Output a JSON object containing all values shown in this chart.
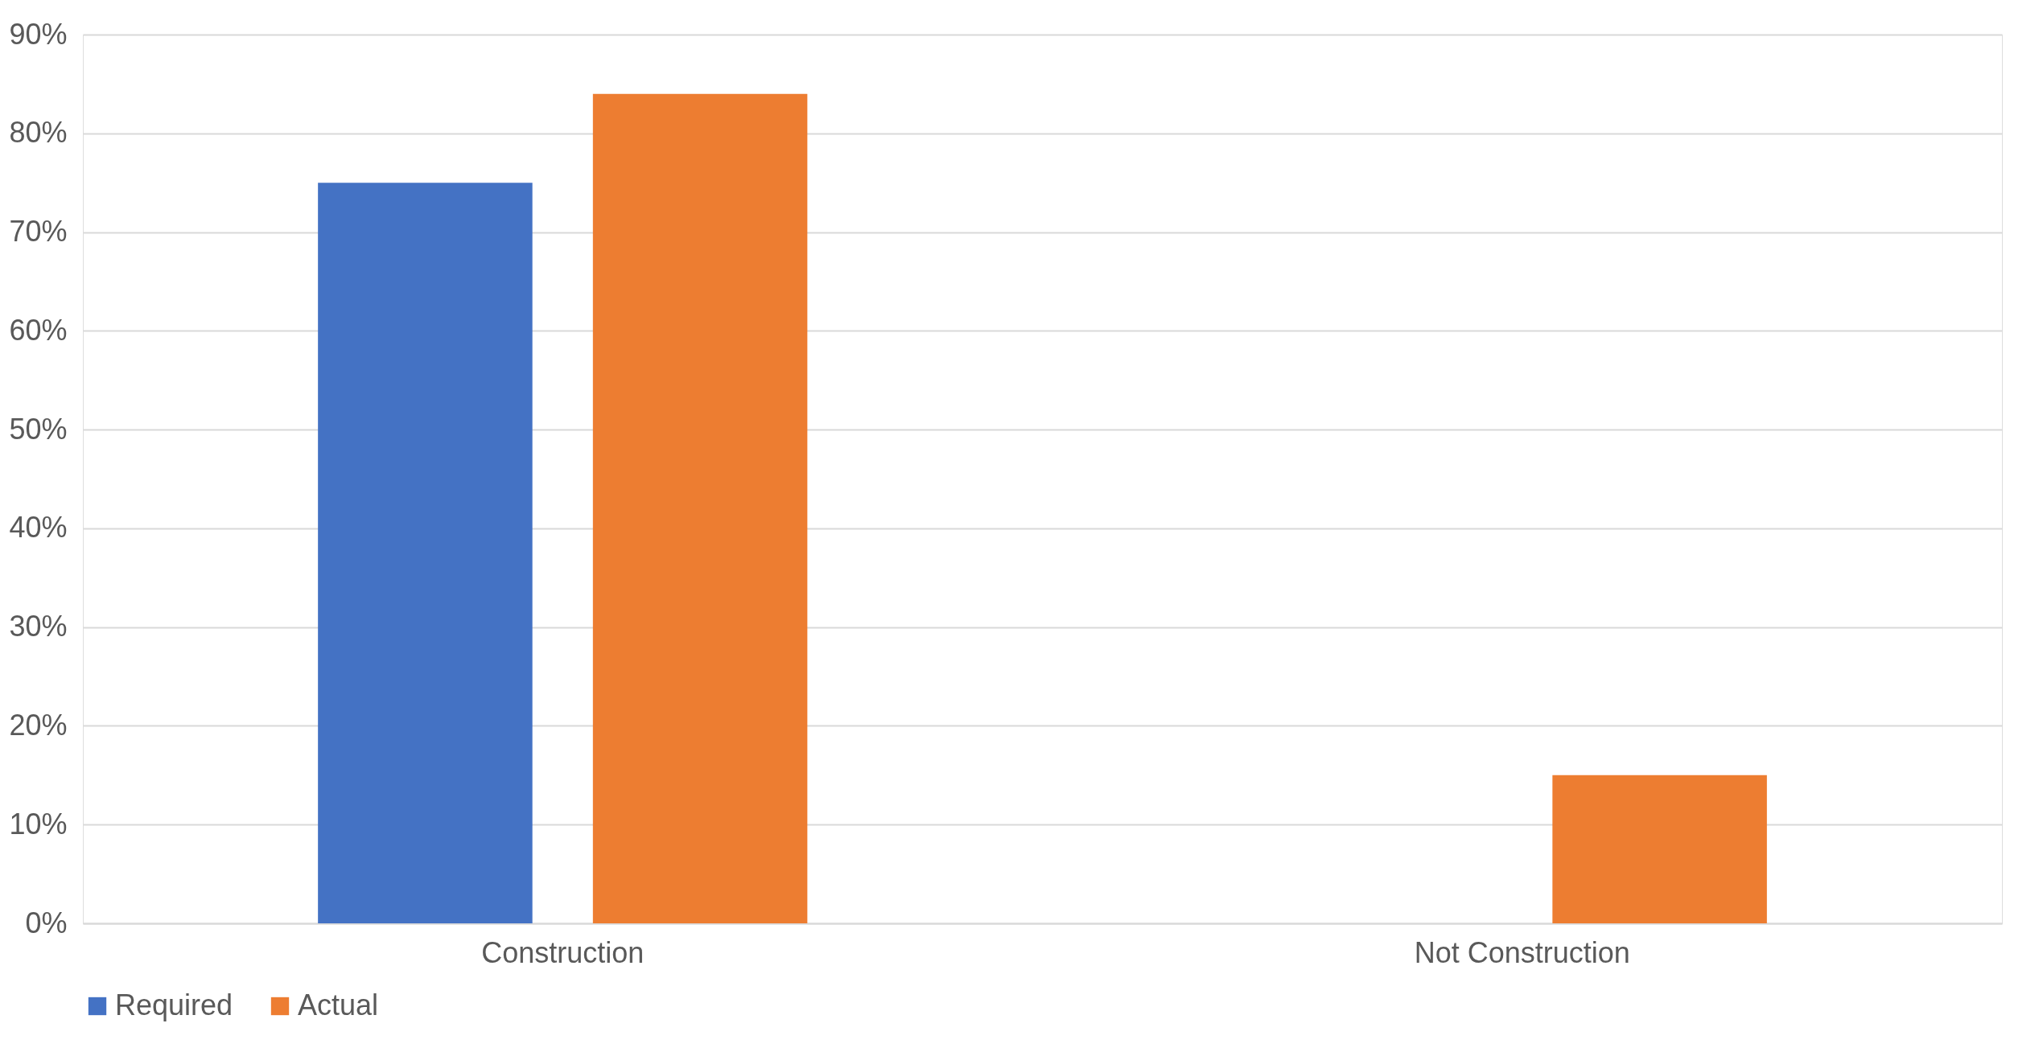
{
  "chart_data": {
    "type": "bar",
    "categories": [
      "Construction",
      "Not Construction"
    ],
    "series": [
      {
        "name": "Required",
        "color": "#4472c4",
        "values": [
          75,
          0
        ]
      },
      {
        "name": "Actual",
        "color": "#ed7d31",
        "values": [
          84,
          15
        ]
      }
    ],
    "ylim": [
      0,
      90
    ],
    "yticks": [
      {
        "value": 0,
        "label": "0%"
      },
      {
        "value": 10,
        "label": "10%"
      },
      {
        "value": 20,
        "label": "20%"
      },
      {
        "value": 30,
        "label": "30%"
      },
      {
        "value": 40,
        "label": "40%"
      },
      {
        "value": 50,
        "label": "50%"
      },
      {
        "value": 60,
        "label": "60%"
      },
      {
        "value": 70,
        "label": "70%"
      },
      {
        "value": 80,
        "label": "80%"
      },
      {
        "value": 90,
        "label": "90%"
      }
    ],
    "grid": "y",
    "legend": "bottom"
  }
}
